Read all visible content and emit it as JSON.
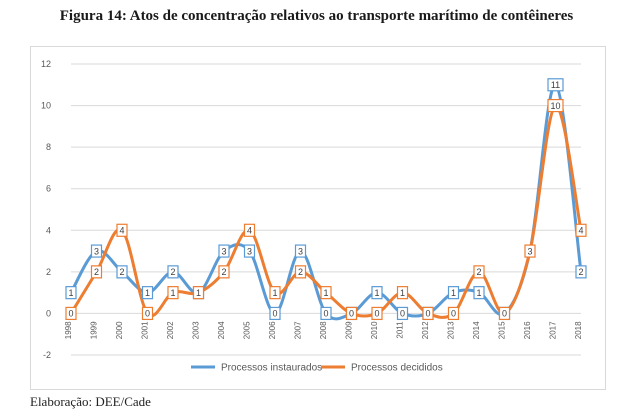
{
  "title": "Figura 14: Atos de concentração relativos ao transporte marítimo de contêineres",
  "caption": "Elaboração: DEE/Cade",
  "colors": {
    "series1": "#5b9bd5",
    "series2": "#ed7d31",
    "grid": "#d9d9d9",
    "axis_text": "#595959"
  },
  "chart_data": {
    "type": "line",
    "x": [
      "1998",
      "1999",
      "2000",
      "2001",
      "2002",
      "2003",
      "2004",
      "2005",
      "2006",
      "2007",
      "2008",
      "2009",
      "2010",
      "2011",
      "2012",
      "2013",
      "2014",
      "2015",
      "2016",
      "2017",
      "2018"
    ],
    "series": [
      {
        "name": "Processos instaurados",
        "values": [
          1,
          3,
          2,
          1,
          2,
          1,
          3,
          3,
          0,
          3,
          0,
          0,
          1,
          0,
          0,
          1,
          1,
          0,
          3,
          11,
          2
        ],
        "labels": [
          "1",
          "3",
          "2",
          "1",
          "2",
          "1",
          "3",
          "3",
          "0",
          "3",
          "0",
          "0",
          "1",
          "0",
          "0",
          "1",
          "1",
          "0",
          "",
          "11",
          "2"
        ]
      },
      {
        "name": "Processos decididos",
        "values": [
          0,
          2,
          4,
          0,
          1,
          1,
          2,
          4,
          1,
          2,
          1,
          0,
          0,
          1,
          0,
          0,
          2,
          0,
          3,
          10,
          4
        ],
        "labels": [
          "0",
          "2",
          "4",
          "0",
          "1",
          "1",
          "2",
          "4",
          "1",
          "2",
          "1",
          "0",
          "0",
          "1",
          "0",
          "0",
          "2",
          "0",
          "3",
          "10",
          "4"
        ]
      }
    ],
    "ylim": [
      -2,
      12
    ],
    "yticks": [
      "12",
      "10",
      "8",
      "6",
      "4",
      "2",
      "0",
      "-2"
    ],
    "grid": true,
    "legend": "bottom",
    "smooth": true
  }
}
